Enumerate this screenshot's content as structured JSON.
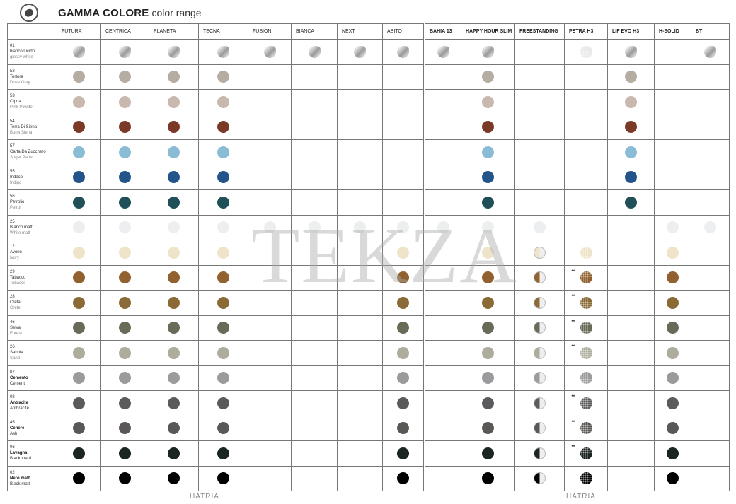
{
  "header": {
    "icon": "palette-icon",
    "title_bold": "GAMMA COLORE",
    "title_light": "color range"
  },
  "watermark": "TEKZA",
  "footer": [
    "HATRIA",
    "HATRIA"
  ],
  "left_columns": [
    "FUTURA",
    "CENTRICA",
    "PLANETA",
    "TECNA",
    "FUSION",
    "BIANCA",
    "NEXT",
    "ABITO"
  ],
  "right_columns": [
    "BAHIA 13",
    "HAPPY HOUR SLIM",
    "FREESTANDING",
    "PETRA H3",
    "LIF EVO H3",
    "H-SOLID",
    "BT"
  ],
  "rows": [
    {
      "code": "01",
      "name": "bianco lucido",
      "name_en": "glossy white",
      "color": "gloss",
      "bold": false,
      "left": [
        1,
        1,
        1,
        1,
        1,
        1,
        1,
        1
      ],
      "right": [
        "s",
        "s",
        "",
        "d:",
        "s",
        "",
        "s"
      ]
    },
    {
      "code": "52",
      "name": "Tortora",
      "name_en": "Dove Gray",
      "color": "#b5aca2",
      "bold": false,
      "left": [
        1,
        1,
        1,
        1,
        0,
        0,
        0,
        0
      ],
      "right": [
        "",
        "s",
        "",
        "",
        "s",
        "",
        ""
      ]
    },
    {
      "code": "53",
      "name": "Cipria",
      "name_en": "Pink Powder",
      "color": "#c9b8ae",
      "bold": false,
      "left": [
        1,
        1,
        1,
        1,
        0,
        0,
        0,
        0
      ],
      "right": [
        "",
        "s",
        "",
        "",
        "s",
        "",
        ""
      ]
    },
    {
      "code": "54",
      "name": "Terra Di Siena",
      "name_en": "Burnt Siena",
      "color": "#7b3a28",
      "bold": false,
      "left": [
        1,
        1,
        1,
        1,
        0,
        0,
        0,
        0
      ],
      "right": [
        "",
        "s",
        "",
        "",
        "s",
        "",
        ""
      ]
    },
    {
      "code": "57",
      "name": "Carta Da Zucchero",
      "name_en": "Sugar Paper",
      "color": "#8bbcd5",
      "bold": false,
      "left": [
        1,
        1,
        1,
        1,
        0,
        0,
        0,
        0
      ],
      "right": [
        "",
        "s",
        "",
        "",
        "s",
        "",
        ""
      ]
    },
    {
      "code": "55",
      "name": "Indaco",
      "name_en": "Indigo",
      "color": "#24558a",
      "bold": false,
      "left": [
        1,
        1,
        1,
        1,
        0,
        0,
        0,
        0
      ],
      "right": [
        "",
        "s",
        "",
        "",
        "s",
        "",
        ""
      ]
    },
    {
      "code": "56",
      "name": "Petrolio",
      "name_en": "Petrol",
      "color": "#1f5058",
      "bold": false,
      "left": [
        1,
        1,
        1,
        1,
        0,
        0,
        0,
        0
      ],
      "right": [
        "",
        "s",
        "",
        "",
        "s",
        "",
        ""
      ]
    },
    {
      "code": "25",
      "name": "Bianco matt",
      "name_en": "White matt",
      "color": "#eceeef",
      "bold": false,
      "left": [
        1,
        1,
        1,
        1,
        1,
        1,
        1,
        1
      ],
      "right": [
        "s",
        "s",
        "s",
        "",
        "",
        "s",
        "s"
      ]
    },
    {
      "code": "12",
      "name": "Avorio",
      "name_en": "Ivory",
      "color": "#efe4c9",
      "bold": false,
      "left": [
        1,
        1,
        1,
        1,
        0,
        0,
        0,
        1
      ],
      "right": [
        "",
        "s",
        "h",
        "d",
        "",
        "s",
        ""
      ]
    },
    {
      "code": "29",
      "name": "Tabacco",
      "name_en": "Tobacco",
      "color": "#91612f",
      "bold": false,
      "left": [
        1,
        1,
        1,
        1,
        0,
        0,
        0,
        1
      ],
      "right": [
        "",
        "s",
        "h",
        "d**",
        "",
        "s",
        ""
      ]
    },
    {
      "code": "28",
      "name": "Creta",
      "name_en": "Crete",
      "color": "#8a6a35",
      "bold": false,
      "left": [
        1,
        1,
        1,
        1,
        0,
        0,
        0,
        1
      ],
      "right": [
        "",
        "s",
        "h",
        "d**",
        "",
        "s",
        ""
      ]
    },
    {
      "code": "46",
      "name": "Selva",
      "name_en": "Forest",
      "color": "#696b59",
      "bold": false,
      "left": [
        1,
        1,
        1,
        1,
        0,
        0,
        0,
        1
      ],
      "right": [
        "",
        "s",
        "h",
        "d**",
        "",
        "s",
        ""
      ]
    },
    {
      "code": "26",
      "name": "Sabbia",
      "name_en": "Sand",
      "color": "#aeac9c",
      "bold": false,
      "left": [
        1,
        1,
        1,
        1,
        0,
        0,
        0,
        1
      ],
      "right": [
        "",
        "s",
        "h",
        "d**",
        "",
        "s",
        ""
      ]
    },
    {
      "code": "07",
      "name": "Cemento",
      "name_en": "Cement",
      "color": "#9b9b9d",
      "bold": true,
      "left": [
        1,
        1,
        1,
        1,
        0,
        0,
        0,
        1
      ],
      "right": [
        "",
        "s",
        "h",
        "d",
        "",
        "s",
        ""
      ]
    },
    {
      "code": "08",
      "name": "Antracite",
      "name_en": "Anthracite",
      "color": "#5b5b5d",
      "bold": true,
      "left": [
        1,
        1,
        1,
        1,
        0,
        0,
        0,
        1
      ],
      "right": [
        "",
        "s",
        "h",
        "d**",
        "",
        "s",
        ""
      ]
    },
    {
      "code": "45",
      "name": "Cenere",
      "name_en": "Ash",
      "color": "#5a5856",
      "bold": true,
      "left": [
        1,
        1,
        1,
        1,
        0,
        0,
        0,
        1
      ],
      "right": [
        "",
        "s",
        "h",
        "d**",
        "",
        "s",
        ""
      ]
    },
    {
      "code": "06",
      "name": "Lavagna",
      "name_en": "Blackboard",
      "color": "#1b2522",
      "bold": true,
      "left": [
        1,
        1,
        1,
        1,
        0,
        0,
        0,
        1
      ],
      "right": [
        "",
        "s",
        "h",
        "d**",
        "",
        "s",
        ""
      ]
    },
    {
      "code": "02",
      "name": "Nero matt",
      "name_en": "Black matt",
      "color": "#000000",
      "bold": true,
      "left": [
        1,
        1,
        1,
        1,
        0,
        0,
        0,
        1
      ],
      "right": [
        "",
        "s",
        "h",
        "d",
        "",
        "s",
        ""
      ]
    }
  ]
}
